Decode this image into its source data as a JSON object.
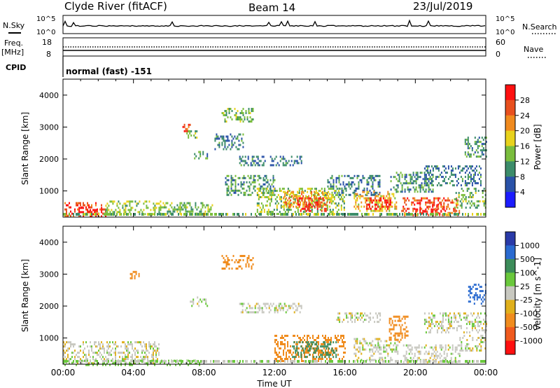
{
  "header": {
    "title": "Clyde River (fitACF)",
    "beam": "Beam 14",
    "date": "23/Jul/2019"
  },
  "top_panels": {
    "nsky_label": "N.Sky",
    "nsearch_label": "N.Search",
    "noise_ticks_left": [
      "10^5",
      "10^0"
    ],
    "noise_ticks_right": [
      "10^5",
      "10^0"
    ],
    "freq_label_1": "Freq.",
    "freq_label_2": "[MHz]",
    "freq_ticks": [
      "18",
      "8"
    ],
    "nave_label": "Nave",
    "nave_ticks": [
      "60",
      "0"
    ],
    "cpid_label": "CPID",
    "cpid_value": "normal (fast) -151"
  },
  "colors": {
    "power": [
      "#1c1cff",
      "#2a52a8",
      "#3c8c6a",
      "#7abd3d",
      "#e8d21c",
      "#f08a1e",
      "#e8501e",
      "#ff1010"
    ],
    "velocity": [
      "#2a3aa8",
      "#2a6ad0",
      "#3c8c5a",
      "#6ac83c",
      "#c8c8c0",
      "#e0b01c",
      "#f08c1e",
      "#f05a1e",
      "#ff1010"
    ]
  },
  "chart_data": [
    {
      "type": "heatmap",
      "title": "Power",
      "ylabel": "Slant Range [km]",
      "xlabel": "Time UT",
      "x_ticks": [
        "00:00",
        "04:00",
        "08:00",
        "12:00",
        "16:00",
        "20:00",
        "00:00"
      ],
      "y_ticks": [
        "1000",
        "2000",
        "3000",
        "4000"
      ],
      "xlim_hours": [
        0,
        24
      ],
      "ylim_km": [
        180,
        4500
      ],
      "colorbar": {
        "label": "Power [dB]",
        "ticks": [
          "4",
          "8",
          "12",
          "16",
          "20",
          "24",
          "28"
        ],
        "range": [
          0,
          30
        ]
      },
      "regions": [
        {
          "t0": 0.0,
          "t1": 2.4,
          "r0": 200,
          "r1": 650,
          "value": 24
        },
        {
          "t0": 0.8,
          "t1": 2.2,
          "r0": 200,
          "r1": 500,
          "value": 29
        },
        {
          "t0": 2.4,
          "t1": 5.5,
          "r0": 250,
          "r1": 700,
          "value": 14
        },
        {
          "t0": 5.5,
          "t1": 8.5,
          "r0": 300,
          "r1": 650,
          "value": 12
        },
        {
          "t0": 6.7,
          "t1": 7.2,
          "r0": 2900,
          "r1": 3100,
          "value": 24
        },
        {
          "t0": 7.0,
          "t1": 7.6,
          "r0": 2700,
          "r1": 2900,
          "value": 12
        },
        {
          "t0": 7.2,
          "t1": 8.2,
          "r0": 2000,
          "r1": 2250,
          "value": 10
        },
        {
          "t0": 9.0,
          "t1": 10.8,
          "r0": 3200,
          "r1": 3600,
          "value": 12
        },
        {
          "t0": 8.6,
          "t1": 10.2,
          "r0": 2300,
          "r1": 2800,
          "value": 8
        },
        {
          "t0": 10.0,
          "t1": 13.5,
          "r0": 1800,
          "r1": 2100,
          "value": 8
        },
        {
          "t0": 9.2,
          "t1": 12.0,
          "r0": 900,
          "r1": 1500,
          "value": 10
        },
        {
          "t0": 11.0,
          "t1": 16.0,
          "r0": 300,
          "r1": 1100,
          "value": 14
        },
        {
          "t0": 12.4,
          "t1": 15.2,
          "r0": 500,
          "r1": 1000,
          "value": 20
        },
        {
          "t0": 13.3,
          "t1": 14.9,
          "r0": 350,
          "r1": 800,
          "value": 28
        },
        {
          "t0": 15.0,
          "t1": 18.0,
          "r0": 900,
          "r1": 1500,
          "value": 8
        },
        {
          "t0": 16.5,
          "t1": 18.9,
          "r0": 400,
          "r1": 1000,
          "value": 18
        },
        {
          "t0": 17.2,
          "t1": 18.6,
          "r0": 450,
          "r1": 800,
          "value": 28
        },
        {
          "t0": 18.5,
          "t1": 21.0,
          "r0": 1000,
          "r1": 1600,
          "value": 10
        },
        {
          "t0": 19.2,
          "t1": 22.5,
          "r0": 250,
          "r1": 800,
          "value": 24
        },
        {
          "t0": 20.0,
          "t1": 21.6,
          "r0": 300,
          "r1": 650,
          "value": 29
        },
        {
          "t0": 20.5,
          "t1": 23.7,
          "r0": 1200,
          "r1": 1800,
          "value": 8
        },
        {
          "t0": 22.8,
          "t1": 24.0,
          "r0": 2100,
          "r1": 2700,
          "value": 10
        },
        {
          "t0": 22.2,
          "t1": 24.0,
          "r0": 500,
          "r1": 1100,
          "value": 12
        }
      ]
    },
    {
      "type": "heatmap",
      "title": "Velocity",
      "ylabel": "Slant Range [km]",
      "xlabel": "Time UT",
      "x_ticks": [
        "00:00",
        "04:00",
        "08:00",
        "12:00",
        "16:00",
        "20:00",
        "00:00"
      ],
      "y_ticks": [
        "1000",
        "2000",
        "3000",
        "4000"
      ],
      "xlim_hours": [
        0,
        24
      ],
      "ylim_km": [
        180,
        4500
      ],
      "colorbar": {
        "label": "Velocity [m s^-1]",
        "ticks": [
          "1000",
          "500",
          "100",
          "25",
          "-25",
          "-100",
          "-500",
          "-1000"
        ]
      },
      "regions": [
        {
          "t0": 0.0,
          "t1": 5.5,
          "r0": 200,
          "r1": 900,
          "value": 0
        },
        {
          "t0": 0.0,
          "t1": 8.0,
          "r0": 180,
          "r1": 320,
          "value": 60
        },
        {
          "t0": 3.8,
          "t1": 4.3,
          "r0": 2900,
          "r1": 3100,
          "value": -150
        },
        {
          "t0": 7.2,
          "t1": 8.2,
          "r0": 2000,
          "r1": 2300,
          "value": 0
        },
        {
          "t0": 9.0,
          "t1": 10.8,
          "r0": 3200,
          "r1": 3600,
          "value": -150
        },
        {
          "t0": 10.0,
          "t1": 13.5,
          "r0": 1800,
          "r1": 2100,
          "value": 0
        },
        {
          "t0": 12.0,
          "t1": 16.0,
          "r0": 300,
          "r1": 1100,
          "value": -300
        },
        {
          "t0": 13.0,
          "t1": 15.5,
          "r0": 400,
          "r1": 900,
          "value": 200
        },
        {
          "t0": 15.5,
          "t1": 18.0,
          "r0": 1500,
          "r1": 1800,
          "value": 0
        },
        {
          "t0": 16.5,
          "t1": 19.0,
          "r0": 300,
          "r1": 1000,
          "value": 0
        },
        {
          "t0": 18.5,
          "t1": 19.6,
          "r0": 900,
          "r1": 1700,
          "value": -300
        },
        {
          "t0": 19.3,
          "t1": 22.5,
          "r0": 250,
          "r1": 800,
          "value": 0
        },
        {
          "t0": 20.5,
          "t1": 24.0,
          "r0": 1200,
          "r1": 1800,
          "value": 0
        },
        {
          "t0": 23.0,
          "t1": 24.0,
          "r0": 2100,
          "r1": 2700,
          "value": 700
        },
        {
          "t0": 22.5,
          "t1": 24.0,
          "r0": 600,
          "r1": 1100,
          "value": 0
        }
      ]
    }
  ]
}
